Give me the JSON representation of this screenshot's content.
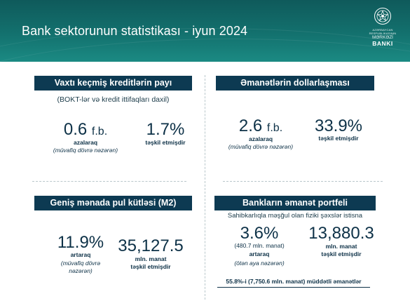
{
  "header": {
    "title": "Bank sektorunun statistikası  - iyun 2024",
    "logo": {
      "line1": "AZƏRBAYCAN",
      "line2": "RESPUBLİKASININ",
      "line3": "MƏRKƏZİ",
      "line4": "BANKI"
    },
    "colors": {
      "bg_top": "#0f5a5b",
      "bg_bottom": "#1b8a83"
    }
  },
  "panels": {
    "overdue_loans": {
      "title": "Vaxtı keçmiş kreditlərin payı",
      "subtitle": "(BOKT-lər və kredit ittifaqları daxil)",
      "stat1": {
        "value": "0.6",
        "unit": "f.b.",
        "label": "azalaraq",
        "note": "(müvafiq dövrə nəzərən)"
      },
      "stat2": {
        "value": "1.7%",
        "label": "təşkil etmişdir"
      }
    },
    "deposit_dollarization": {
      "title": "Əmanətlərin dollarlaşması",
      "stat1": {
        "value": "2.6",
        "unit": "f.b.",
        "label": "azalaraq",
        "note": "(müvafiq dövrə nəzərən)"
      },
      "stat2": {
        "value": "33.9%",
        "label": "təşkil etmişdir"
      }
    },
    "money_supply": {
      "title": "Geniş mənada pul kütləsi (M2)",
      "stat1": {
        "value": "11.9%",
        "label": "artaraq",
        "note_line1": "(müvafiq dövrə",
        "note_line2": "nəzərən)"
      },
      "stat2": {
        "value": "35,127.5",
        "label_line1": "mln. manat",
        "label_line2": "təşkil etmişdir"
      }
    },
    "deposit_portfolio": {
      "title": "Bankların əmanət portfeli",
      "subtitle": "Sahibkarlıqla məşğul olan fiziki şəxslər istisna",
      "stat1": {
        "value": "3.6%",
        "detail": "(480.7 mln. manat)",
        "label": "artaraq",
        "note": "(ötən aya nəzərən)"
      },
      "stat2": {
        "value": "13,880.3",
        "label_line1": "mln. manat",
        "label_line2": "təşkil etmişdir"
      },
      "footer": "55.8%-i (7,750.6 mln. manat) müddətli əmanətlər"
    }
  },
  "colors": {
    "tag_bg": "#0d3a52",
    "text": "#0d3147"
  }
}
